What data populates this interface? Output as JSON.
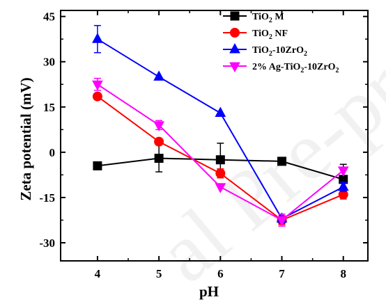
{
  "chart_data": {
    "type": "line",
    "xlabel": "pH",
    "ylabel": "Zeta potential (mV)",
    "x": [
      4,
      5,
      6,
      7,
      8
    ],
    "xlim": [
      3.4,
      8.4
    ],
    "ylim": [
      -36,
      47
    ],
    "xticks": [
      4,
      5,
      6,
      7,
      8
    ],
    "yticks": [
      -30,
      -15,
      0,
      15,
      30,
      45
    ],
    "legend_position": "top-right",
    "series": [
      {
        "name": "TiO2 M",
        "legend_parts": [
          [
            "TiO",
            false
          ],
          [
            "2",
            true
          ],
          [
            " M",
            false
          ]
        ],
        "color": "#000000",
        "marker": "square",
        "values": [
          -4.5,
          -2,
          -2.5,
          -3,
          -9
        ],
        "errors": [
          0,
          4.5,
          5.5,
          1,
          5
        ]
      },
      {
        "name": "TiO2 NF",
        "legend_parts": [
          [
            "TiO",
            false
          ],
          [
            "2",
            true
          ],
          [
            " NF",
            false
          ]
        ],
        "color": "#ff0000",
        "marker": "circle",
        "values": [
          18.5,
          3.5,
          -7,
          -22.5,
          -14
        ],
        "errors": [
          0,
          0,
          1.5,
          1.5,
          1.5
        ]
      },
      {
        "name": "TiO2-10ZrO2",
        "legend_parts": [
          [
            "TiO",
            false
          ],
          [
            "2",
            true
          ],
          [
            "-10ZrO",
            false
          ],
          [
            "2",
            true
          ]
        ],
        "color": "#0000ff",
        "marker": "triangle-up",
        "values": [
          37.5,
          25,
          13,
          -22,
          -11.5
        ],
        "errors": [
          4.5,
          0,
          0,
          1.5,
          1.5
        ]
      },
      {
        "name": "2% Ag-TiO2-10ZrO2",
        "legend_parts": [
          [
            "2% Ag-TiO",
            false
          ],
          [
            "2",
            true
          ],
          [
            "-10ZrO",
            false
          ],
          [
            "2",
            true
          ]
        ],
        "color": "#ff00ff",
        "marker": "triangle-down",
        "values": [
          22.5,
          9,
          -11.5,
          -22.5,
          -6
        ],
        "errors": [
          2,
          1.5,
          0,
          2,
          0
        ]
      }
    ]
  }
}
